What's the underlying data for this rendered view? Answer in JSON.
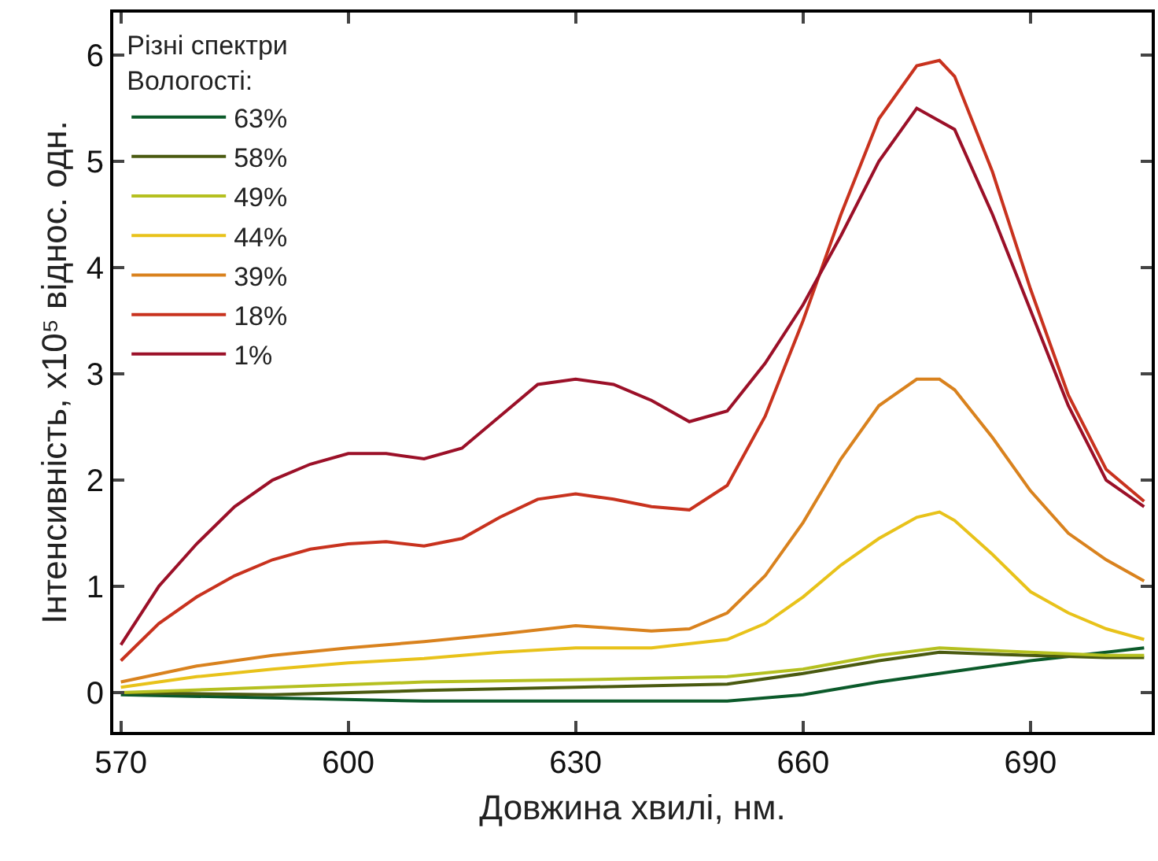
{
  "chart_data": {
    "type": "line",
    "xlabel": "Довжина хвилі, нм.",
    "ylabel": "Інтенсивність, x10⁵ віднос. одн.",
    "legend_title": "Різні спектри\nВологості:",
    "legend": "top left",
    "grid": false,
    "line_style": "solid",
    "marker": "none",
    "xlim": [
      569,
      706
    ],
    "xticks": [
      570,
      600,
      630,
      660,
      690
    ],
    "ylim": [
      -0.37,
      6.4
    ],
    "yticks": [
      0,
      1,
      2,
      3,
      4,
      5,
      6
    ],
    "series": [
      {
        "name": "63%",
        "color": "#0b5a2a",
        "x": [
          570,
          590,
          610,
          630,
          650,
          660,
          670,
          680,
          690,
          700,
          705
        ],
        "values": [
          -0.02,
          -0.05,
          -0.08,
          -0.08,
          -0.08,
          -0.02,
          0.1,
          0.2,
          0.3,
          0.38,
          0.42
        ]
      },
      {
        "name": "58%",
        "color": "#4a5a10",
        "x": [
          570,
          590,
          610,
          630,
          650,
          660,
          670,
          678,
          690,
          700,
          705
        ],
        "values": [
          0,
          -0.02,
          0.02,
          0.05,
          0.08,
          0.18,
          0.3,
          0.38,
          0.35,
          0.33,
          0.33
        ]
      },
      {
        "name": "49%",
        "color": "#b5c020",
        "x": [
          570,
          590,
          610,
          630,
          650,
          660,
          670,
          678,
          690,
          700,
          705
        ],
        "values": [
          0,
          0.05,
          0.1,
          0.12,
          0.15,
          0.22,
          0.35,
          0.42,
          0.38,
          0.35,
          0.35
        ]
      },
      {
        "name": "44%",
        "color": "#e8c21a",
        "x": [
          570,
          580,
          590,
          600,
          610,
          620,
          630,
          640,
          650,
          655,
          660,
          665,
          670,
          675,
          678,
          680,
          685,
          690,
          695,
          700,
          705
        ],
        "values": [
          0.05,
          0.15,
          0.22,
          0.28,
          0.32,
          0.38,
          0.42,
          0.42,
          0.5,
          0.65,
          0.9,
          1.2,
          1.45,
          1.65,
          1.7,
          1.62,
          1.3,
          0.95,
          0.75,
          0.6,
          0.5
        ]
      },
      {
        "name": "39%",
        "color": "#d9821e",
        "x": [
          570,
          580,
          590,
          600,
          610,
          620,
          630,
          640,
          645,
          650,
          655,
          660,
          665,
          670,
          675,
          678,
          680,
          685,
          690,
          695,
          700,
          705
        ],
        "values": [
          0.1,
          0.25,
          0.35,
          0.42,
          0.48,
          0.55,
          0.63,
          0.58,
          0.6,
          0.75,
          1.1,
          1.6,
          2.2,
          2.7,
          2.95,
          2.95,
          2.85,
          2.4,
          1.9,
          1.5,
          1.25,
          1.05
        ]
      },
      {
        "name": "18%",
        "color": "#c8321e",
        "x": [
          570,
          575,
          580,
          585,
          590,
          595,
          600,
          605,
          610,
          615,
          620,
          625,
          630,
          635,
          640,
          645,
          650,
          655,
          660,
          665,
          670,
          675,
          678,
          680,
          685,
          690,
          695,
          700,
          705
        ],
        "values": [
          0.3,
          0.65,
          0.9,
          1.1,
          1.25,
          1.35,
          1.4,
          1.42,
          1.38,
          1.45,
          1.65,
          1.82,
          1.87,
          1.82,
          1.75,
          1.72,
          1.95,
          2.6,
          3.5,
          4.5,
          5.4,
          5.9,
          5.95,
          5.8,
          4.9,
          3.8,
          2.8,
          2.1,
          1.8
        ]
      },
      {
        "name": "1%",
        "color": "#9b1028",
        "x": [
          570,
          575,
          580,
          585,
          590,
          595,
          600,
          605,
          610,
          615,
          620,
          625,
          630,
          635,
          640,
          645,
          650,
          655,
          660,
          665,
          670,
          675,
          680,
          685,
          690,
          695,
          700,
          705
        ],
        "values": [
          0.45,
          1.0,
          1.4,
          1.75,
          2.0,
          2.15,
          2.25,
          2.25,
          2.2,
          2.3,
          2.6,
          2.9,
          2.95,
          2.9,
          2.75,
          2.55,
          2.65,
          3.1,
          3.65,
          4.3,
          5.0,
          5.5,
          5.3,
          4.5,
          3.6,
          2.7,
          2.0,
          1.75
        ]
      }
    ]
  }
}
